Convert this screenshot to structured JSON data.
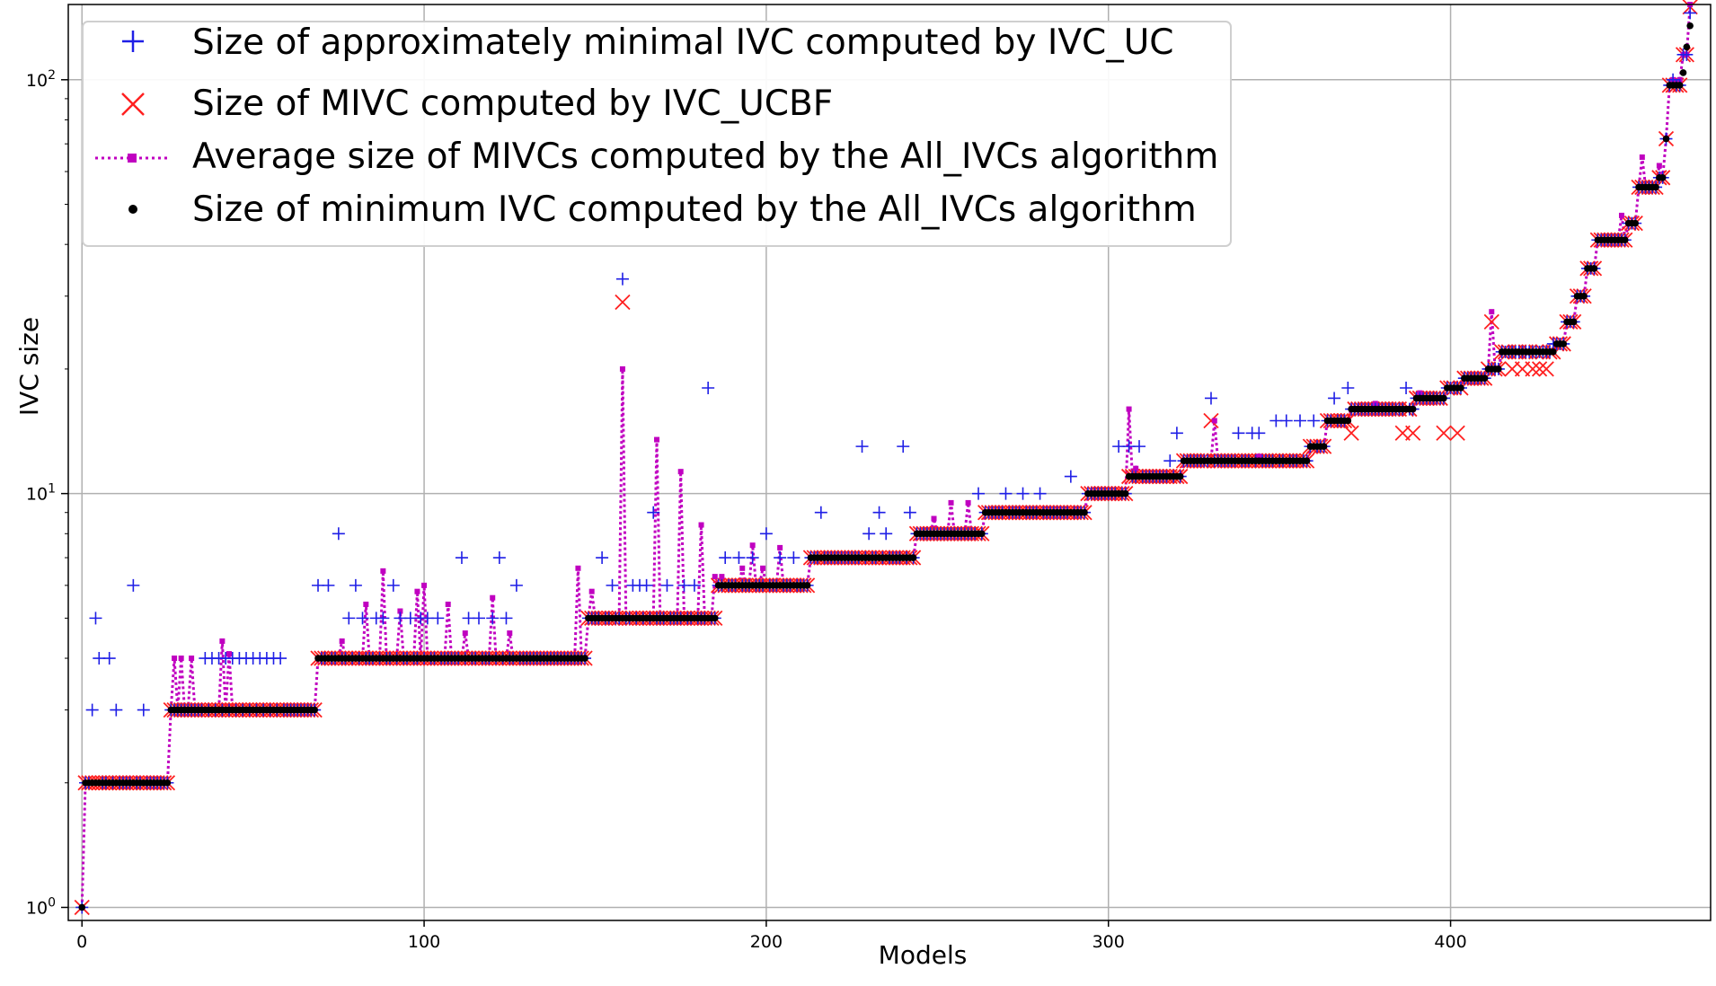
{
  "chart_data": {
    "type": "scatter",
    "xlabel": "Models",
    "ylabel": "IVC size",
    "x_range": [
      -4,
      476
    ],
    "y_range": [
      0.93,
      152
    ],
    "y_scale": "log",
    "grid": true,
    "legend_position": "top-left",
    "x_ticks": [
      0,
      100,
      200,
      300,
      400
    ],
    "x_tick_labels": [
      "0",
      "100",
      "200",
      "300",
      "400"
    ],
    "y_ticks": [
      1,
      10,
      100
    ],
    "y_tick_labels": [
      {
        "base": "10",
        "exp": "0"
      },
      {
        "base": "10",
        "exp": "1"
      },
      {
        "base": "10",
        "exp": "2"
      }
    ],
    "colors": {
      "ivc_uc": "#1f1fe6",
      "ivc_ucbf": "#ff2020",
      "avg_all": "#c000c0",
      "min_all": "#000000"
    },
    "legend": [
      {
        "label": "Size of approximately minimal IVC computed by IVC_UC",
        "marker": "plus",
        "color": "#1f1fe6"
      },
      {
        "label": "Size of MIVC computed by IVC_UCBF",
        "marker": "x",
        "color": "#ff2020"
      },
      {
        "label": "Average size of MIVCs computed by the All_IVCs algorithm",
        "marker": "dotted-square",
        "color": "#c000c0"
      },
      {
        "label": "Size of minimum IVC computed by the All_IVCs algorithm",
        "marker": "dot",
        "color": "#000000"
      }
    ],
    "base_steps": [
      {
        "from": 0,
        "to": 0,
        "value": 1
      },
      {
        "from": 1,
        "to": 25,
        "value": 2
      },
      {
        "from": 26,
        "to": 68,
        "value": 3
      },
      {
        "from": 69,
        "to": 147,
        "value": 4
      },
      {
        "from": 148,
        "to": 185,
        "value": 5
      },
      {
        "from": 186,
        "to": 212,
        "value": 6
      },
      {
        "from": 213,
        "to": 243,
        "value": 7
      },
      {
        "from": 244,
        "to": 263,
        "value": 8
      },
      {
        "from": 264,
        "to": 293,
        "value": 9
      },
      {
        "from": 294,
        "to": 305,
        "value": 10
      },
      {
        "from": 306,
        "to": 321,
        "value": 11
      },
      {
        "from": 322,
        "to": 358,
        "value": 12
      },
      {
        "from": 359,
        "to": 363,
        "value": 13
      },
      {
        "from": 364,
        "to": 370,
        "value": 15
      },
      {
        "from": 371,
        "to": 389,
        "value": 16
      },
      {
        "from": 390,
        "to": 398,
        "value": 17
      },
      {
        "from": 399,
        "to": 403,
        "value": 18
      },
      {
        "from": 404,
        "to": 410,
        "value": 19
      },
      {
        "from": 411,
        "to": 414,
        "value": 20
      },
      {
        "from": 415,
        "to": 430,
        "value": 22
      },
      {
        "from": 431,
        "to": 433,
        "value": 23
      },
      {
        "from": 434,
        "to": 436,
        "value": 26
      },
      {
        "from": 437,
        "to": 439,
        "value": 30
      },
      {
        "from": 440,
        "to": 442,
        "value": 35
      },
      {
        "from": 443,
        "to": 451,
        "value": 41
      },
      {
        "from": 452,
        "to": 454,
        "value": 45
      },
      {
        "from": 455,
        "to": 460,
        "value": 55
      },
      {
        "from": 461,
        "to": 462,
        "value": 58
      },
      {
        "from": 463,
        "to": 463,
        "value": 72
      },
      {
        "from": 464,
        "to": 467,
        "value": 97
      },
      {
        "from": 468,
        "to": 469,
        "value": 115
      },
      {
        "from": 470,
        "to": 470,
        "value": 145
      }
    ],
    "ivc_uc_overrides": [
      [
        4,
        5
      ],
      [
        3,
        3
      ],
      [
        5,
        4
      ],
      [
        8,
        4
      ],
      [
        10,
        3
      ],
      [
        15,
        6
      ],
      [
        18,
        3
      ],
      [
        36,
        4
      ],
      [
        38,
        4
      ],
      [
        40,
        4
      ],
      [
        42,
        4
      ],
      [
        44,
        4
      ],
      [
        46,
        4
      ],
      [
        48,
        4
      ],
      [
        50,
        4
      ],
      [
        52,
        4
      ],
      [
        54,
        4
      ],
      [
        56,
        4
      ],
      [
        58,
        4
      ],
      [
        69,
        6
      ],
      [
        72,
        6
      ],
      [
        75,
        8
      ],
      [
        78,
        5
      ],
      [
        80,
        6
      ],
      [
        82,
        5
      ],
      [
        86,
        5
      ],
      [
        88,
        5
      ],
      [
        91,
        6
      ],
      [
        93,
        5
      ],
      [
        96,
        5
      ],
      [
        99,
        5
      ],
      [
        101,
        5
      ],
      [
        104,
        5
      ],
      [
        111,
        7
      ],
      [
        113,
        5
      ],
      [
        116,
        5
      ],
      [
        120,
        5
      ],
      [
        122,
        7
      ],
      [
        124,
        5
      ],
      [
        127,
        6
      ],
      [
        152,
        7
      ],
      [
        155,
        6
      ],
      [
        158,
        33
      ],
      [
        161,
        6
      ],
      [
        163,
        6
      ],
      [
        165,
        6
      ],
      [
        167,
        9
      ],
      [
        171,
        6
      ],
      [
        176,
        6
      ],
      [
        179,
        6
      ],
      [
        183,
        18
      ],
      [
        188,
        7
      ],
      [
        192,
        7
      ],
      [
        196,
        7
      ],
      [
        200,
        8
      ],
      [
        204,
        7
      ],
      [
        208,
        7
      ],
      [
        216,
        9
      ],
      [
        228,
        13
      ],
      [
        230,
        8
      ],
      [
        233,
        9
      ],
      [
        235,
        8
      ],
      [
        240,
        13
      ],
      [
        242,
        9
      ],
      [
        255,
        8
      ],
      [
        260,
        8
      ],
      [
        262,
        10
      ],
      [
        270,
        10
      ],
      [
        275,
        10
      ],
      [
        280,
        10
      ],
      [
        289,
        11
      ],
      [
        303,
        13
      ],
      [
        306,
        13
      ],
      [
        309,
        13
      ],
      [
        318,
        12
      ],
      [
        320,
        14
      ],
      [
        330,
        17
      ],
      [
        338,
        14
      ],
      [
        342,
        14
      ],
      [
        344,
        14
      ],
      [
        349,
        15
      ],
      [
        352,
        15
      ],
      [
        356,
        15
      ],
      [
        360,
        15
      ],
      [
        366,
        17
      ],
      [
        370,
        18
      ],
      [
        387,
        18
      ],
      [
        389,
        16
      ],
      [
        398,
        17
      ],
      [
        418,
        22
      ],
      [
        422,
        22
      ],
      [
        430,
        23
      ],
      [
        465,
        100
      ],
      [
        467,
        97
      ]
    ],
    "ivc_ucbf_overrides": [
      [
        158,
        29
      ],
      [
        330,
        15
      ],
      [
        371,
        14
      ],
      [
        386,
        14
      ],
      [
        389,
        14
      ],
      [
        398,
        14
      ],
      [
        402,
        14
      ],
      [
        412,
        26
      ],
      [
        418,
        20
      ],
      [
        421,
        20
      ],
      [
        424,
        20
      ],
      [
        426,
        20
      ],
      [
        428,
        20
      ],
      [
        463,
        72
      ],
      [
        470,
        150
      ]
    ],
    "avg_overrides": [
      [
        27,
        4
      ],
      [
        29,
        4
      ],
      [
        32,
        4
      ],
      [
        41,
        4.4
      ],
      [
        43,
        4.1
      ],
      [
        76,
        4.4
      ],
      [
        83,
        5.4
      ],
      [
        88,
        6.5
      ],
      [
        93,
        5.2
      ],
      [
        98,
        5.8
      ],
      [
        100,
        6
      ],
      [
        107,
        5.4
      ],
      [
        112,
        4.6
      ],
      [
        120,
        5.6
      ],
      [
        125,
        4.6
      ],
      [
        145,
        6.6
      ],
      [
        149,
        5.8
      ],
      [
        158,
        20
      ],
      [
        168,
        13.5
      ],
      [
        175,
        11.3
      ],
      [
        181,
        8.4
      ],
      [
        185,
        6.3
      ],
      [
        187,
        6.3
      ],
      [
        193,
        6.6
      ],
      [
        196,
        7.5
      ],
      [
        199,
        6.6
      ],
      [
        204,
        7.4
      ],
      [
        249,
        8.7
      ],
      [
        254,
        9.5
      ],
      [
        259,
        9.5
      ],
      [
        306,
        16
      ],
      [
        308,
        11.5
      ],
      [
        331,
        15
      ],
      [
        344,
        12.3
      ],
      [
        378,
        16.5
      ],
      [
        391,
        17.5
      ],
      [
        412,
        27.5
      ],
      [
        450,
        47
      ],
      [
        456,
        65
      ],
      [
        461,
        62
      ],
      [
        465,
        100
      ],
      [
        467,
        100
      ],
      [
        470,
        152
      ]
    ],
    "min_overrides": [
      [
        468,
        104
      ],
      [
        469,
        120
      ],
      [
        470,
        135
      ]
    ]
  }
}
